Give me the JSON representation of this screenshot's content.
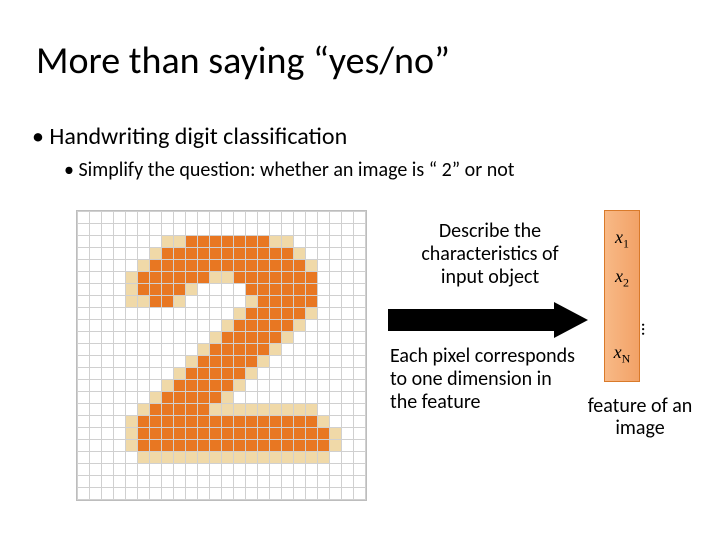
{
  "title": "More than saying “yes/no”",
  "bullet1": "Handwriting digit classification",
  "bullet2": "Simplify the question: whether an image is “ 2” or not",
  "desc_text": "Describe the characteristics of input object",
  "pixel_text": "Each pixel corresponds to one dimension in the feature",
  "feature_caption": "feature of an image",
  "feature_labels": {
    "x1": "x",
    "s1": "1",
    "x2": "x",
    "s2": "2",
    "xn": "x",
    "sn": "N"
  },
  "grid": {
    "cols": 24,
    "rows": 24,
    "colors": {
      "0": "#ffffff",
      "1": "#e87722",
      "2": "#f0d9a8"
    },
    "pattern": [
      "000000000000000000000000",
      "000000000000000000000000",
      "000000022111111122000000",
      "000000211111111111200000",
      "000002111111111111120000",
      "000021111112211111110000",
      "000021111200001111110000",
      "000022112000002111110000",
      "000000000000021111120000",
      "000000000000211111200000",
      "000000000002111112000000",
      "000000000021111120000000",
      "000000000211111200000000",
      "000000002111112000000000",
      "000000021111120000000000",
      "000000211111200000000000",
      "000002111112222222220000",
      "000021111111111111112000",
      "000021111111111111111200",
      "000021111111111111111200",
      "000002222222222222222000",
      "000000000000000000000000",
      "000000000000000000000000",
      "000000000000000000000000"
    ]
  },
  "arrow": {
    "fill": "#000000",
    "shaft_height": 22,
    "head_width": 34
  }
}
